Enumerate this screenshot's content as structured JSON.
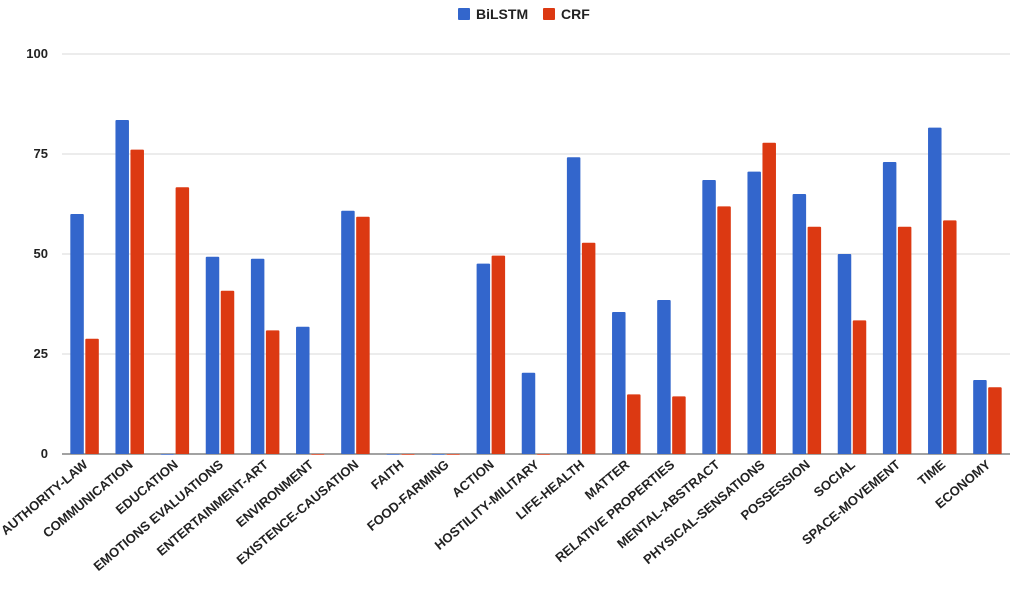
{
  "chart_data": {
    "type": "bar",
    "title": "",
    "xlabel": "",
    "ylabel": "",
    "ylim": [
      0,
      100
    ],
    "yticks": [
      "0",
      "25",
      "50",
      "75",
      "100"
    ],
    "ytick_values": [
      0,
      25,
      50,
      75,
      100
    ],
    "grid": true,
    "legend_position": "top-center",
    "categories": [
      "AUTHORITY-LAW",
      "COMMUNICATION",
      "EDUCATION",
      "EMOTIONS EVALUATIONS",
      "ENTERTAINMENT-ART",
      "ENVIRONMENT",
      "EXISTENCE-CAUSATION",
      "FAITH",
      "FOOD-FARMING",
      "ACTION",
      "HOSTILITY-MILITARY",
      "LIFE-HEALTH",
      "MATTER",
      "RELATIVE PROPERTIES",
      "MENTAL-ABSTRACT",
      "PHYSICAL-SENSATIONS",
      "POSSESSION",
      "SOCIAL",
      "SPACE-MOVEMENT",
      "TIME",
      "ECONOMY"
    ],
    "series": [
      {
        "name": "BiLSTM",
        "color": "#3366cc",
        "values": [
          60,
          83.5,
          0,
          49.3,
          48.8,
          31.8,
          60.8,
          0,
          0,
          47.6,
          20.3,
          74.2,
          35.5,
          38.5,
          68.5,
          70.6,
          65,
          50,
          73,
          81.6,
          18.5
        ]
      },
      {
        "name": "CRF",
        "color": "#dc3912",
        "values": [
          28.8,
          76.1,
          66.7,
          40.8,
          30.9,
          0,
          59.3,
          0,
          0,
          49.6,
          0,
          52.8,
          14.9,
          14.4,
          61.9,
          77.8,
          56.8,
          33.4,
          56.8,
          58.4,
          16.7
        ]
      }
    ]
  }
}
